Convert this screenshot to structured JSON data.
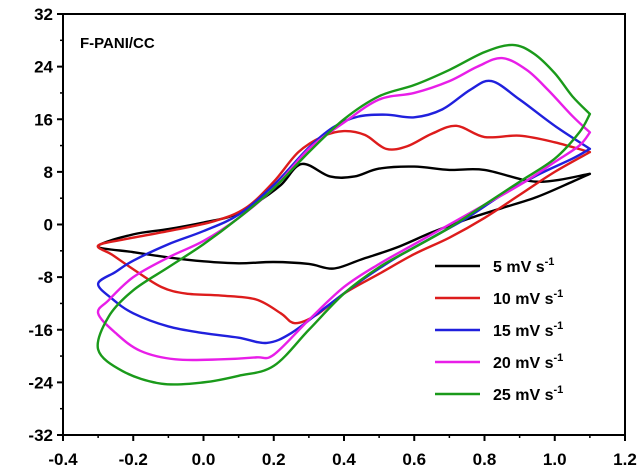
{
  "chart_data": {
    "type": "line",
    "title": "F-PANI/CC",
    "xlabel": "",
    "ylabel": "",
    "xlim": [
      -0.4,
      1.2
    ],
    "ylim": [
      -32,
      32
    ],
    "xticks": [
      -0.4,
      -0.2,
      0.0,
      0.2,
      0.4,
      0.6,
      0.8,
      1.0,
      1.2
    ],
    "xtick_labels": [
      "-0.4",
      "-0.2",
      "0.0",
      "0.2",
      "0.4",
      "0.6",
      "0.8",
      "1.0",
      "1.2"
    ],
    "yticks": [
      -32,
      -24,
      -16,
      -8,
      0,
      8,
      16,
      24,
      32
    ],
    "ytick_labels": [
      "-32",
      "-24",
      "-16",
      "-8",
      "0",
      "8",
      "16",
      "24",
      "32"
    ],
    "grid": false,
    "legend_position": "bottom-right",
    "series": [
      {
        "name": "5 mV s",
        "name_sup": "-1",
        "color": "#000000",
        "points": [
          [
            1.1,
            7.7
          ],
          [
            0.95,
            6.5
          ],
          [
            0.8,
            8.3
          ],
          [
            0.7,
            8.3
          ],
          [
            0.6,
            8.8
          ],
          [
            0.5,
            8.5
          ],
          [
            0.43,
            7.3
          ],
          [
            0.36,
            7.3
          ],
          [
            0.28,
            9.2
          ],
          [
            0.22,
            6.0
          ],
          [
            0.15,
            3.3
          ],
          [
            0.08,
            1.3
          ],
          [
            0.0,
            0.3
          ],
          [
            -0.1,
            -0.7
          ],
          [
            -0.2,
            -1.5
          ],
          [
            -0.3,
            -3.3
          ],
          [
            -0.2,
            -4.2
          ],
          [
            -0.1,
            -5.0
          ],
          [
            0.0,
            -5.6
          ],
          [
            0.1,
            -5.9
          ],
          [
            0.2,
            -5.7
          ],
          [
            0.3,
            -6.0
          ],
          [
            0.37,
            -6.7
          ],
          [
            0.45,
            -5.3
          ],
          [
            0.55,
            -3.5
          ],
          [
            0.65,
            -1.2
          ],
          [
            0.75,
            0.8
          ],
          [
            0.85,
            2.5
          ],
          [
            0.95,
            4.2
          ],
          [
            1.05,
            6.5
          ],
          [
            1.1,
            7.7
          ]
        ]
      },
      {
        "name": "10 mV s",
        "name_sup": "-1",
        "color": "#dd1c1c",
        "points": [
          [
            1.1,
            11.0
          ],
          [
            1.0,
            12.5
          ],
          [
            0.9,
            13.5
          ],
          [
            0.8,
            13.3
          ],
          [
            0.72,
            15.0
          ],
          [
            0.65,
            13.8
          ],
          [
            0.58,
            11.9
          ],
          [
            0.52,
            11.5
          ],
          [
            0.46,
            13.6
          ],
          [
            0.4,
            14.2
          ],
          [
            0.34,
            13.4
          ],
          [
            0.27,
            11.0
          ],
          [
            0.2,
            6.5
          ],
          [
            0.12,
            2.5
          ],
          [
            0.03,
            0.5
          ],
          [
            -0.1,
            -1.0
          ],
          [
            -0.22,
            -2.2
          ],
          [
            -0.3,
            -3.2
          ],
          [
            -0.26,
            -4.6
          ],
          [
            -0.2,
            -6.8
          ],
          [
            -0.12,
            -9.5
          ],
          [
            -0.05,
            -10.5
          ],
          [
            0.05,
            -10.8
          ],
          [
            0.15,
            -11.4
          ],
          [
            0.22,
            -13.5
          ],
          [
            0.26,
            -15.0
          ],
          [
            0.32,
            -13.8
          ],
          [
            0.4,
            -10.5
          ],
          [
            0.5,
            -7.5
          ],
          [
            0.6,
            -4.5
          ],
          [
            0.7,
            -2.0
          ],
          [
            0.8,
            1.0
          ],
          [
            0.9,
            4.5
          ],
          [
            1.0,
            8.0
          ],
          [
            1.1,
            11.0
          ]
        ]
      },
      {
        "name": "15 mV s",
        "name_sup": "-1",
        "color": "#2020dd",
        "points": [
          [
            1.1,
            11.5
          ],
          [
            1.0,
            15.0
          ],
          [
            0.9,
            19.0
          ],
          [
            0.82,
            21.8
          ],
          [
            0.76,
            20.5
          ],
          [
            0.68,
            17.5
          ],
          [
            0.6,
            16.3
          ],
          [
            0.52,
            16.7
          ],
          [
            0.44,
            16.4
          ],
          [
            0.37,
            14.8
          ],
          [
            0.3,
            11.7
          ],
          [
            0.2,
            6.0
          ],
          [
            0.1,
            1.5
          ],
          [
            0.0,
            -1.0
          ],
          [
            -0.1,
            -3.0
          ],
          [
            -0.2,
            -5.5
          ],
          [
            -0.25,
            -7.2
          ],
          [
            -0.3,
            -9.0
          ],
          [
            -0.26,
            -11.3
          ],
          [
            -0.2,
            -13.5
          ],
          [
            -0.1,
            -15.5
          ],
          [
            0.0,
            -16.5
          ],
          [
            0.1,
            -17.2
          ],
          [
            0.18,
            -18.0
          ],
          [
            0.25,
            -16.5
          ],
          [
            0.35,
            -12.5
          ],
          [
            0.45,
            -8.5
          ],
          [
            0.55,
            -5.0
          ],
          [
            0.65,
            -2.0
          ],
          [
            0.75,
            1.0
          ],
          [
            0.85,
            4.5
          ],
          [
            0.95,
            7.5
          ],
          [
            1.05,
            10.0
          ],
          [
            1.1,
            11.5
          ]
        ]
      },
      {
        "name": "20 mV s",
        "name_sup": "-1",
        "color": "#e81ee8",
        "points": [
          [
            1.1,
            14.0
          ],
          [
            1.05,
            16.5
          ],
          [
            0.98,
            20.5
          ],
          [
            0.92,
            23.5
          ],
          [
            0.85,
            25.3
          ],
          [
            0.78,
            24.0
          ],
          [
            0.7,
            21.8
          ],
          [
            0.6,
            20.0
          ],
          [
            0.5,
            19.0
          ],
          [
            0.4,
            15.5
          ],
          [
            0.3,
            11.5
          ],
          [
            0.2,
            5.5
          ],
          [
            0.1,
            1.0
          ],
          [
            0.0,
            -2.5
          ],
          [
            -0.1,
            -5.0
          ],
          [
            -0.2,
            -8.0
          ],
          [
            -0.27,
            -11.5
          ],
          [
            -0.3,
            -13.5
          ],
          [
            -0.25,
            -16.5
          ],
          [
            -0.18,
            -19.2
          ],
          [
            -0.08,
            -20.5
          ],
          [
            0.05,
            -20.5
          ],
          [
            0.15,
            -20.2
          ],
          [
            0.2,
            -19.8
          ],
          [
            0.3,
            -14.5
          ],
          [
            0.4,
            -9.5
          ],
          [
            0.5,
            -6.0
          ],
          [
            0.6,
            -3.0
          ],
          [
            0.7,
            0.0
          ],
          [
            0.8,
            3.0
          ],
          [
            0.9,
            6.0
          ],
          [
            1.0,
            9.5
          ],
          [
            1.07,
            12.0
          ],
          [
            1.1,
            14.0
          ]
        ]
      },
      {
        "name": "25 mV s",
        "name_sup": "-1",
        "color": "#1a9a1a",
        "points": [
          [
            1.1,
            16.8
          ],
          [
            1.05,
            19.5
          ],
          [
            1.0,
            23.0
          ],
          [
            0.94,
            26.0
          ],
          [
            0.88,
            27.3
          ],
          [
            0.8,
            26.2
          ],
          [
            0.7,
            23.5
          ],
          [
            0.6,
            21.2
          ],
          [
            0.5,
            19.5
          ],
          [
            0.4,
            16.0
          ],
          [
            0.3,
            11.0
          ],
          [
            0.2,
            5.5
          ],
          [
            0.1,
            1.0
          ],
          [
            0.0,
            -3.0
          ],
          [
            -0.1,
            -6.5
          ],
          [
            -0.2,
            -10.0
          ],
          [
            -0.27,
            -14.0
          ],
          [
            -0.3,
            -19.0
          ],
          [
            -0.23,
            -22.3
          ],
          [
            -0.12,
            -24.2
          ],
          [
            0.0,
            -24.0
          ],
          [
            0.1,
            -23.0
          ],
          [
            0.2,
            -21.5
          ],
          [
            0.3,
            -16.0
          ],
          [
            0.4,
            -10.5
          ],
          [
            0.5,
            -6.5
          ],
          [
            0.6,
            -3.5
          ],
          [
            0.7,
            -0.5
          ],
          [
            0.8,
            3.0
          ],
          [
            0.9,
            6.5
          ],
          [
            1.0,
            10.0
          ],
          [
            1.07,
            14.0
          ],
          [
            1.1,
            16.8
          ]
        ]
      }
    ]
  }
}
